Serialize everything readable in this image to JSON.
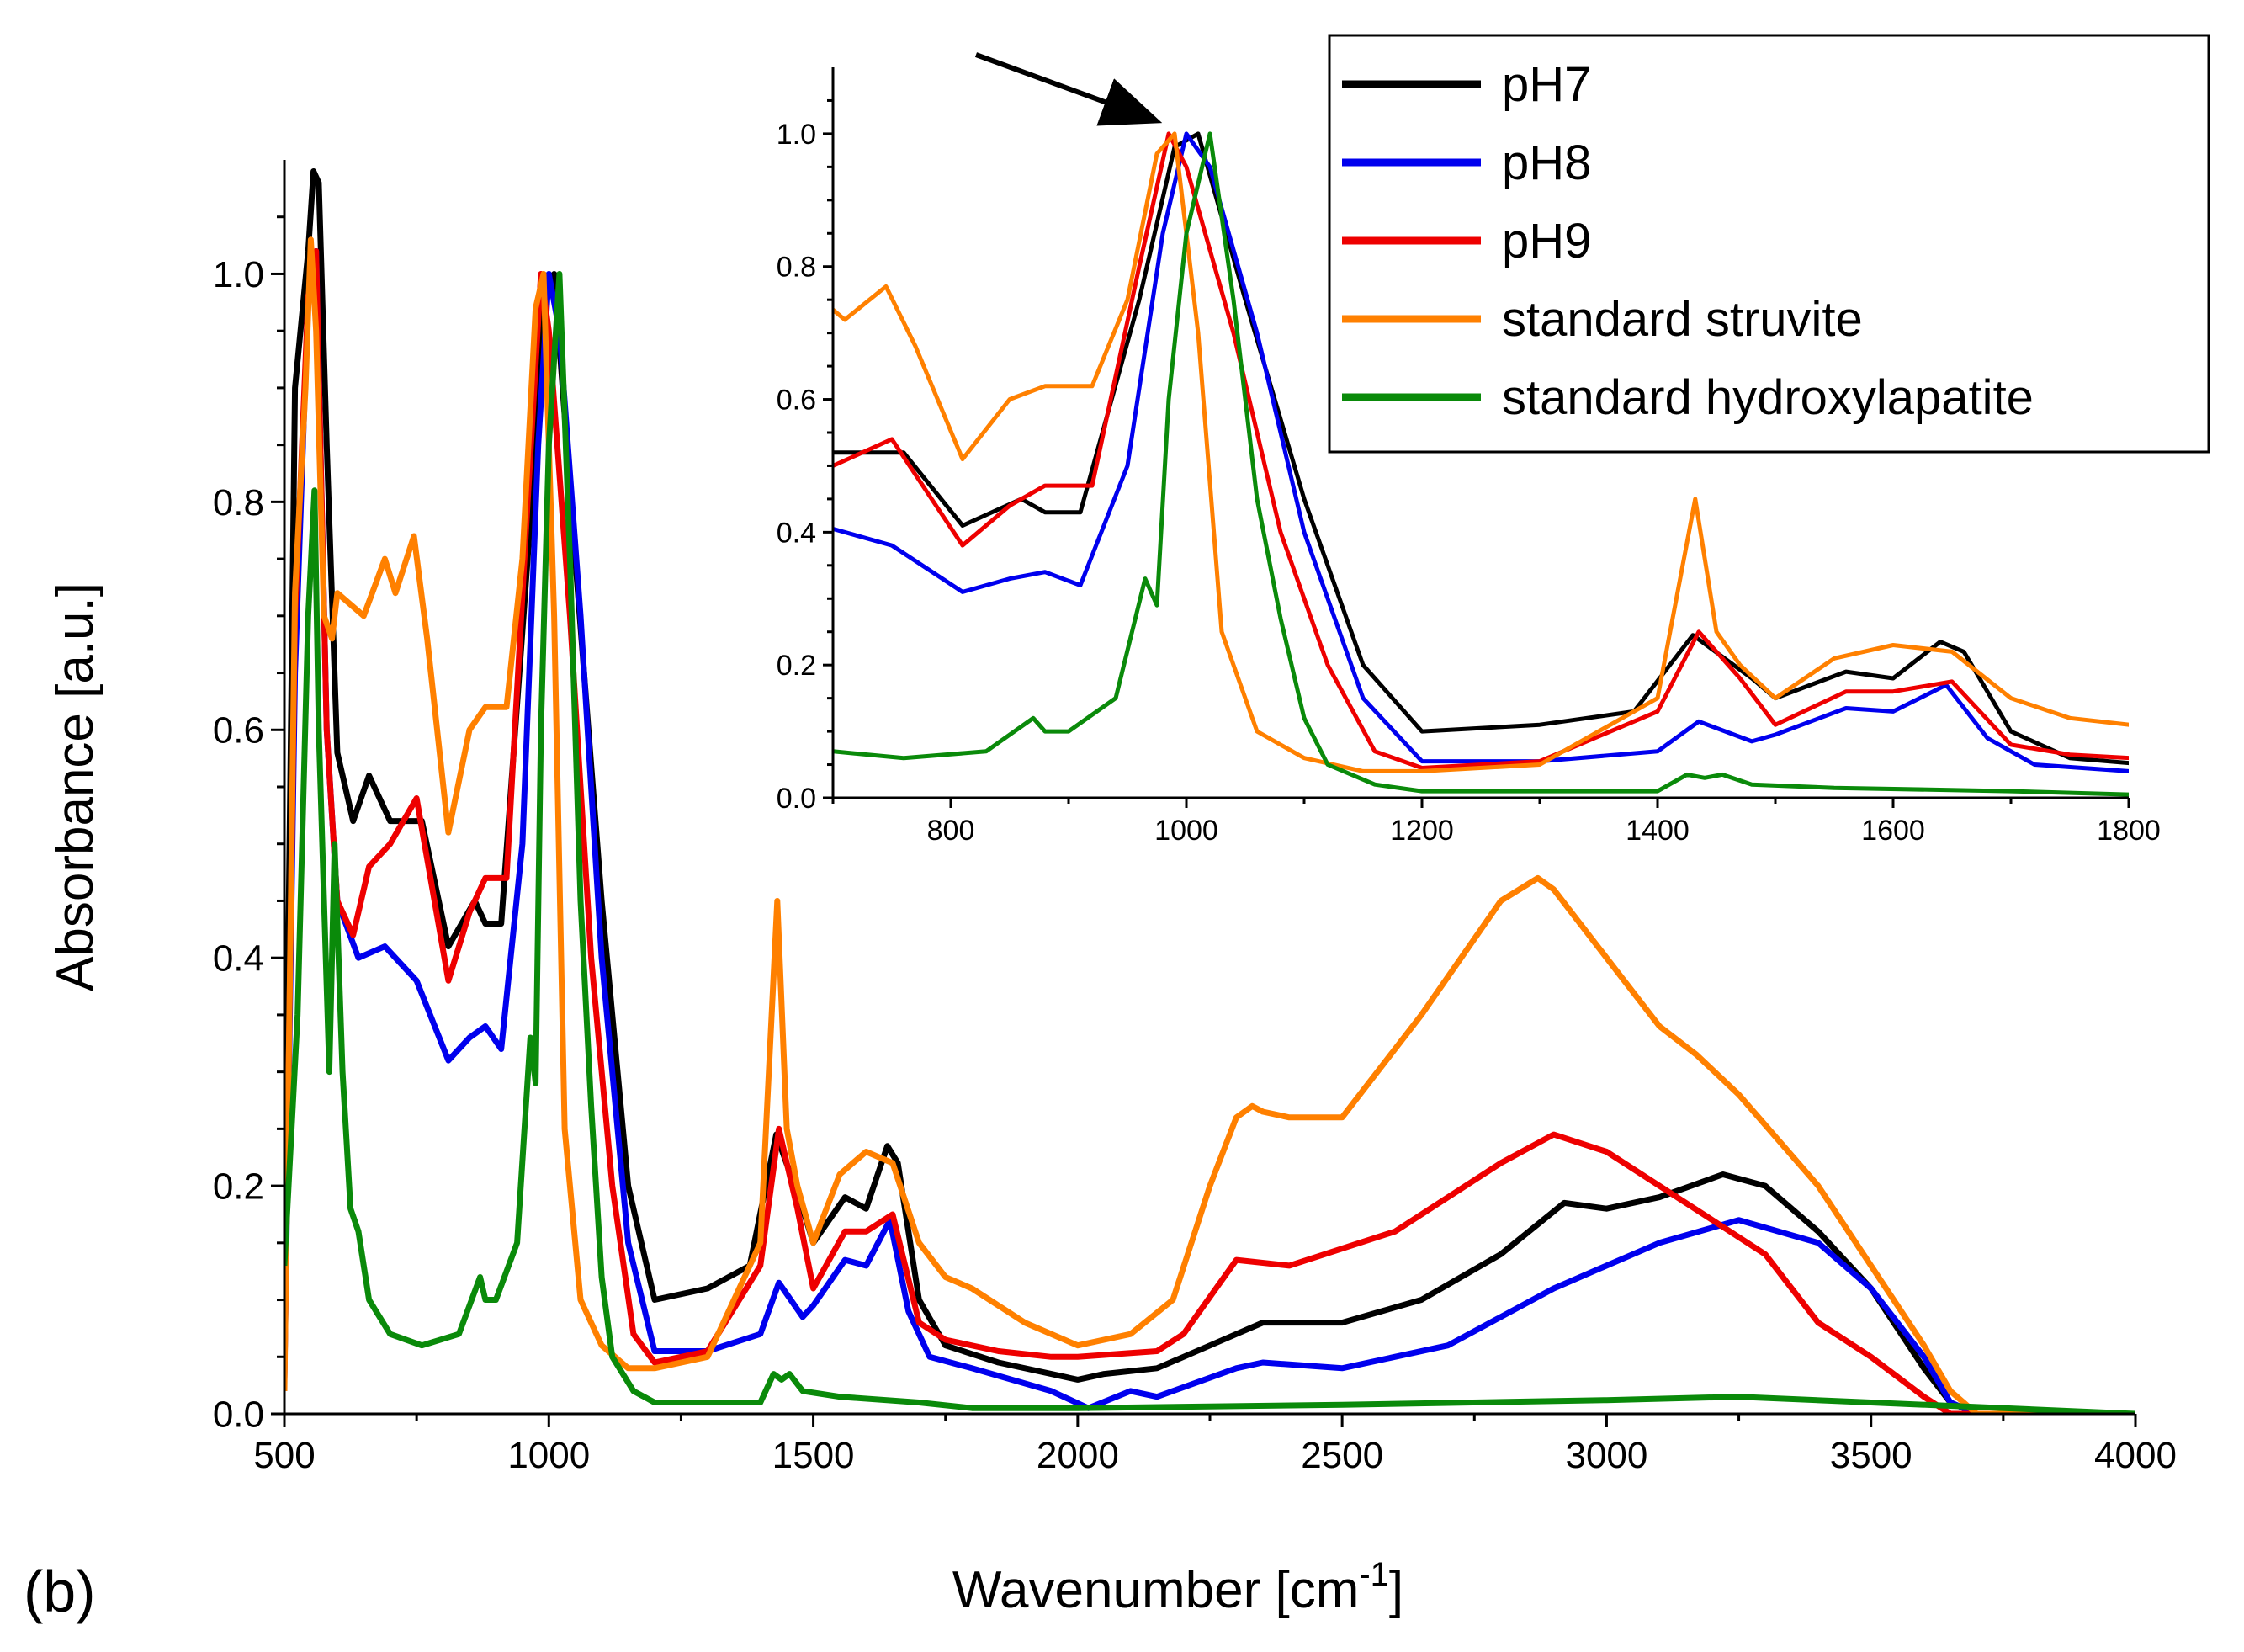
{
  "panel_label": "(b)",
  "chart_data": [
    {
      "name": "main-spectrum",
      "type": "line",
      "xlabel_main": "Wavenumber [cm",
      "xlabel_sup": "-1",
      "xlabel_end": "]",
      "ylabel": "Absorbance [a.u.]",
      "xlim": [
        500,
        4000
      ],
      "ylim": [
        0,
        1.1
      ],
      "x_ticks": [
        500,
        1000,
        1500,
        2000,
        2500,
        3000,
        3500,
        4000
      ],
      "x_tick_labels": [
        "500",
        "1000",
        "1500",
        "2000",
        "2500",
        "3000",
        "3500",
        "4000"
      ],
      "y_ticks": [
        0,
        0.2,
        0.4,
        0.6,
        0.8,
        1.0
      ],
      "y_tick_labels": [
        "0.0",
        "0.2",
        "0.4",
        "0.6",
        "0.8",
        "1.0"
      ],
      "series": [
        {
          "name": "pH7",
          "color": "#000000",
          "x": [
            500,
            520,
            545,
            555,
            565,
            580,
            600,
            630,
            660,
            700,
            760,
            810,
            860,
            880,
            910,
            960,
            990,
            1010,
            1050,
            1100,
            1150,
            1200,
            1300,
            1380,
            1430,
            1480,
            1500,
            1560,
            1600,
            1640,
            1660,
            1700,
            1750,
            1850,
            1950,
            2000,
            2050,
            2150,
            2200,
            2300,
            2350,
            2500,
            2650,
            2800,
            2920,
            3000,
            3100,
            3220,
            3300,
            3400,
            3500,
            3600,
            3650,
            3700,
            3800,
            4000
          ],
          "y": [
            0.12,
            0.9,
            1.02,
            1.09,
            1.08,
            0.85,
            0.58,
            0.52,
            0.56,
            0.52,
            0.52,
            0.41,
            0.45,
            0.43,
            0.43,
            0.75,
            0.98,
            1.0,
            0.75,
            0.45,
            0.2,
            0.1,
            0.11,
            0.13,
            0.245,
            0.18,
            0.15,
            0.19,
            0.18,
            0.235,
            0.22,
            0.1,
            0.06,
            0.045,
            0.035,
            0.03,
            0.035,
            0.04,
            0.05,
            0.07,
            0.08,
            0.08,
            0.1,
            0.14,
            0.185,
            0.18,
            0.19,
            0.21,
            0.2,
            0.16,
            0.11,
            0.04,
            0.01,
            0.0,
            0.0,
            0.0
          ]
        },
        {
          "name": "pH8",
          "color": "#0000ee",
          "x": [
            500,
            520,
            545,
            560,
            580,
            600,
            640,
            690,
            750,
            810,
            850,
            880,
            910,
            950,
            980,
            1000,
            1020,
            1060,
            1100,
            1150,
            1200,
            1300,
            1400,
            1435,
            1480,
            1500,
            1560,
            1600,
            1645,
            1680,
            1720,
            1800,
            1950,
            2020,
            2100,
            2150,
            2300,
            2350,
            2500,
            2700,
            2900,
            3000,
            3100,
            3250,
            3400,
            3500,
            3600,
            3650,
            3700,
            4000
          ],
          "y": [
            0.03,
            0.65,
            0.98,
            1.02,
            0.6,
            0.45,
            0.4,
            0.41,
            0.38,
            0.31,
            0.33,
            0.34,
            0.32,
            0.5,
            0.85,
            1.0,
            0.95,
            0.7,
            0.4,
            0.15,
            0.055,
            0.055,
            0.07,
            0.115,
            0.085,
            0.095,
            0.135,
            0.13,
            0.17,
            0.09,
            0.05,
            0.04,
            0.02,
            0.005,
            0.02,
            0.015,
            0.04,
            0.045,
            0.04,
            0.06,
            0.11,
            0.13,
            0.15,
            0.17,
            0.15,
            0.11,
            0.05,
            0.01,
            0.0,
            0.0
          ]
        },
        {
          "name": "pH9",
          "color": "#ee0000",
          "x": [
            500,
            520,
            545,
            560,
            580,
            600,
            630,
            660,
            700,
            750,
            810,
            850,
            880,
            920,
            960,
            985,
            1000,
            1040,
            1080,
            1120,
            1160,
            1200,
            1300,
            1400,
            1435,
            1470,
            1500,
            1560,
            1600,
            1650,
            1700,
            1750,
            1850,
            1950,
            2000,
            2150,
            2200,
            2300,
            2400,
            2600,
            2800,
            2900,
            3000,
            3200,
            3300,
            3400,
            3500,
            3600,
            3650,
            3700,
            4000
          ],
          "y": [
            0.03,
            0.7,
            0.98,
            1.02,
            0.6,
            0.45,
            0.42,
            0.48,
            0.5,
            0.54,
            0.38,
            0.44,
            0.47,
            0.47,
            0.8,
            1.0,
            0.95,
            0.7,
            0.4,
            0.2,
            0.07,
            0.045,
            0.055,
            0.13,
            0.25,
            0.18,
            0.11,
            0.16,
            0.16,
            0.175,
            0.08,
            0.065,
            0.055,
            0.05,
            0.05,
            0.055,
            0.07,
            0.135,
            0.13,
            0.16,
            0.22,
            0.245,
            0.23,
            0.17,
            0.14,
            0.08,
            0.05,
            0.015,
            0.0,
            0.0,
            0.0
          ]
        },
        {
          "name": "standard struvite",
          "color": "#ff8000",
          "x": [
            500,
            520,
            540,
            550,
            560,
            575,
            590,
            600,
            650,
            690,
            710,
            745,
            770,
            810,
            850,
            880,
            920,
            950,
            975,
            990,
            1010,
            1030,
            1060,
            1100,
            1150,
            1200,
            1300,
            1400,
            1432,
            1450,
            1470,
            1500,
            1550,
            1600,
            1650,
            1700,
            1750,
            1800,
            1900,
            2000,
            2100,
            2180,
            2250,
            2300,
            2330,
            2350,
            2400,
            2500,
            2650,
            2800,
            2870,
            2900,
            3000,
            3100,
            3170,
            3250,
            3400,
            3500,
            3600,
            3650,
            3700,
            4000
          ],
          "y": [
            0.02,
            0.72,
            0.9,
            1.03,
            0.95,
            0.7,
            0.68,
            0.72,
            0.7,
            0.75,
            0.72,
            0.77,
            0.68,
            0.51,
            0.6,
            0.62,
            0.62,
            0.75,
            0.97,
            1.0,
            0.7,
            0.25,
            0.1,
            0.06,
            0.04,
            0.04,
            0.05,
            0.15,
            0.45,
            0.25,
            0.2,
            0.15,
            0.21,
            0.23,
            0.22,
            0.15,
            0.12,
            0.11,
            0.08,
            0.06,
            0.07,
            0.1,
            0.2,
            0.26,
            0.27,
            0.265,
            0.26,
            0.26,
            0.35,
            0.45,
            0.47,
            0.46,
            0.4,
            0.34,
            0.315,
            0.28,
            0.2,
            0.13,
            0.06,
            0.02,
            0.0,
            0.0
          ]
        },
        {
          "name": "standard hydroxylapatite",
          "color": "#0a8a0a",
          "x": [
            500,
            525,
            545,
            557,
            565,
            575,
            585,
            595,
            610,
            625,
            640,
            660,
            700,
            760,
            830,
            870,
            880,
            900,
            940,
            965,
            975,
            985,
            1000,
            1020,
            1040,
            1060,
            1080,
            1100,
            1120,
            1160,
            1200,
            1300,
            1400,
            1425,
            1440,
            1455,
            1480,
            1550,
            1700,
            1800,
            2000,
            2500,
            3000,
            3250,
            3500,
            4000
          ],
          "y": [
            0.13,
            0.35,
            0.7,
            0.81,
            0.6,
            0.45,
            0.3,
            0.5,
            0.3,
            0.18,
            0.16,
            0.1,
            0.07,
            0.06,
            0.07,
            0.12,
            0.1,
            0.1,
            0.15,
            0.33,
            0.29,
            0.6,
            0.85,
            1.0,
            0.75,
            0.45,
            0.27,
            0.12,
            0.05,
            0.02,
            0.01,
            0.01,
            0.01,
            0.035,
            0.03,
            0.035,
            0.02,
            0.015,
            0.01,
            0.005,
            0.005,
            0.008,
            0.012,
            0.015,
            0.01,
            0.0
          ]
        }
      ]
    },
    {
      "name": "inset-spectrum",
      "type": "line",
      "xlim": [
        700,
        1800
      ],
      "ylim": [
        0,
        1.1
      ],
      "x_ticks": [
        800,
        1000,
        1200,
        1400,
        1600,
        1800
      ],
      "x_tick_labels": [
        "800",
        "1000",
        "1200",
        "1400",
        "1600",
        "1800"
      ],
      "y_ticks": [
        0,
        0.2,
        0.4,
        0.6,
        0.8,
        1.0
      ],
      "y_tick_labels": [
        "0.0",
        "0.2",
        "0.4",
        "0.6",
        "0.8",
        "1.0"
      ],
      "annotation": "arrow pointing to peak maxima near 980 cm-1",
      "series_ref": "main-spectrum"
    }
  ],
  "legend": {
    "placement": "top-right",
    "items": [
      {
        "label": "pH7",
        "color": "#000000"
      },
      {
        "label": "pH8",
        "color": "#0000ee"
      },
      {
        "label": "pH9",
        "color": "#ee0000"
      },
      {
        "label": "standard struvite",
        "color": "#ff8000"
      },
      {
        "label": "standard hydroxylapatite",
        "color": "#0a8a0a"
      }
    ]
  }
}
